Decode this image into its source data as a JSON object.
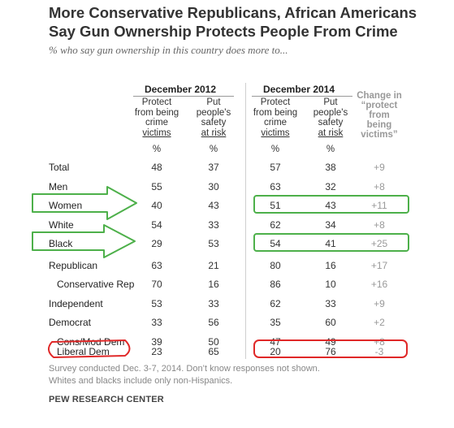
{
  "chart_data": {
    "type": "table",
    "title": "More Conservative Republicans, African Americans Say Gun Ownership Protects People From Crime",
    "subtitle": "% who say gun ownership in this country does more to...",
    "column_groups": [
      "December 2012",
      "December 2014"
    ],
    "column_headers": [
      {
        "line1": "Protect",
        "line2": "from being",
        "line3": "crime",
        "line4": "victims"
      },
      {
        "line1": "Put",
        "line2": "people's",
        "line3": "safety",
        "line4": "at risk"
      },
      {
        "line1": "Protect",
        "line2": "from being",
        "line3": "crime",
        "line4": "victims"
      },
      {
        "line1": "Put",
        "line2": "people's",
        "line3": "safety",
        "line4": "at risk"
      }
    ],
    "change_header": [
      "Change in",
      "“protect",
      "from",
      "being",
      "victims”"
    ],
    "unit_label": "%",
    "rows": [
      {
        "label": "Total",
        "values": [
          "48",
          "37",
          "57",
          "38"
        ],
        "change": "+9"
      },
      {
        "label": "Men",
        "values": [
          "55",
          "30",
          "63",
          "32"
        ],
        "change": "+8"
      },
      {
        "label": "Women",
        "values": [
          "40",
          "43",
          "51",
          "43"
        ],
        "change": "+11"
      },
      {
        "label": "White",
        "values": [
          "54",
          "33",
          "62",
          "34"
        ],
        "change": "+8"
      },
      {
        "label": "Black",
        "values": [
          "29",
          "53",
          "54",
          "41"
        ],
        "change": "+25"
      },
      {
        "label": "Republican",
        "values": [
          "63",
          "21",
          "80",
          "16"
        ],
        "change": "+17"
      },
      {
        "label": "Conservative Rep",
        "values": [
          "70",
          "16",
          "86",
          "10"
        ],
        "change": "+16"
      },
      {
        "label": "Independent",
        "values": [
          "53",
          "33",
          "62",
          "33"
        ],
        "change": "+9"
      },
      {
        "label": "Democrat",
        "values": [
          "33",
          "56",
          "35",
          "60"
        ],
        "change": "+2"
      },
      {
        "label": "Cons/Mod Dem",
        "values": [
          "39",
          "50",
          "47",
          "49"
        ],
        "change": "+8"
      },
      {
        "label": "Liberal Dem",
        "values": [
          "23",
          "65",
          "20",
          "76"
        ],
        "change": "-3"
      }
    ],
    "footnote_lines": [
      "Survey conducted Dec. 3-7, 2014. Don’t know responses not shown.",
      "Whites and blacks include only non-Hispanics."
    ],
    "source": "PEW RESEARCH CENTER",
    "highlight_colors": {
      "green": "#4db04a",
      "red": "#e02828"
    }
  }
}
